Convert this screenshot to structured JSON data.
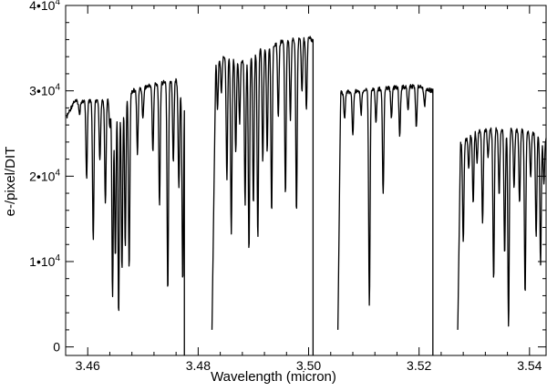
{
  "chart_data": {
    "type": "line",
    "title": "",
    "xlabel": "Wavelength (micron)",
    "ylabel": "e-/pixel/DIT",
    "xlim": [
      3.456,
      3.543
    ],
    "ylim": [
      -1000,
      40000
    ],
    "grid": false,
    "legend": "none",
    "x_ticks": [
      {
        "value": 3.46,
        "label": "3.46"
      },
      {
        "value": 3.48,
        "label": "3.48"
      },
      {
        "value": 3.5,
        "label": "3.50"
      },
      {
        "value": 3.52,
        "label": "3.52"
      },
      {
        "value": 3.54,
        "label": "3.54"
      }
    ],
    "y_ticks": [
      {
        "value": 0,
        "base": "0",
        "exp": ""
      },
      {
        "value": 10000,
        "base": "1•10",
        "exp": "4"
      },
      {
        "value": 20000,
        "base": "2•10",
        "exp": "4"
      },
      {
        "value": 30000,
        "base": "3•10",
        "exp": "4"
      },
      {
        "value": 40000,
        "base": "4•10",
        "exp": "4"
      }
    ],
    "line_color": "#000000",
    "segments": [
      {
        "x_start": 3.4562,
        "x_end": 3.4775,
        "continuum": [
          [
            3.4562,
            27200
          ],
          [
            3.4575,
            29000
          ],
          [
            3.463,
            29000
          ],
          [
            3.468,
            30200
          ],
          [
            3.472,
            31000
          ],
          [
            3.476,
            31500
          ],
          [
            3.4775,
            29000
          ]
        ],
        "lines": [
          [
            3.4585,
            27500
          ],
          [
            3.4598,
            20000
          ],
          [
            3.461,
            12500
          ],
          [
            3.4622,
            22000
          ],
          [
            3.4632,
            17000
          ],
          [
            3.464,
            26000
          ],
          [
            3.4645,
            6000
          ],
          [
            3.465,
            10500
          ],
          [
            3.4656,
            4000
          ],
          [
            3.4662,
            9000
          ],
          [
            3.4668,
            12000
          ],
          [
            3.4675,
            9500
          ],
          [
            3.469,
            23000
          ],
          [
            3.47,
            27000
          ],
          [
            3.4718,
            23000
          ],
          [
            3.473,
            17000
          ],
          [
            3.4745,
            6700
          ],
          [
            3.4755,
            22000
          ],
          [
            3.4765,
            19000
          ],
          [
            3.4772,
            8000
          ]
        ],
        "drop_to": -1000
      },
      {
        "x_start": 3.4825,
        "x_end": 3.5008,
        "continuum": [
          [
            3.4825,
            2000
          ],
          [
            3.4832,
            34000
          ],
          [
            3.485,
            34300
          ],
          [
            3.488,
            33800
          ],
          [
            3.491,
            35000
          ],
          [
            3.495,
            36000
          ],
          [
            3.5003,
            36500
          ],
          [
            3.5008,
            36000
          ]
        ],
        "lines": [
          [
            3.4835,
            28000
          ],
          [
            3.4842,
            30000
          ],
          [
            3.4852,
            20000
          ],
          [
            3.486,
            13500
          ],
          [
            3.4868,
            23000
          ],
          [
            3.4875,
            26500
          ],
          [
            3.4885,
            17000
          ],
          [
            3.4892,
            11500
          ],
          [
            3.49,
            17000
          ],
          [
            3.4908,
            13000
          ],
          [
            3.4917,
            22000
          ],
          [
            3.4925,
            23000
          ],
          [
            3.4933,
            16000
          ],
          [
            3.4945,
            27000
          ],
          [
            3.4958,
            18000
          ],
          [
            3.4967,
            27000
          ],
          [
            3.4978,
            16000
          ],
          [
            3.4988,
            30000
          ],
          [
            3.4996,
            28000
          ]
        ],
        "drop_to": -1000
      },
      {
        "x_start": 3.5053,
        "x_end": 3.5225,
        "continuum": [
          [
            3.5053,
            2000
          ],
          [
            3.5058,
            30000
          ],
          [
            3.51,
            30300
          ],
          [
            3.515,
            30600
          ],
          [
            3.52,
            30800
          ],
          [
            3.5225,
            30200
          ]
        ],
        "lines": [
          [
            3.5065,
            27000
          ],
          [
            3.508,
            25000
          ],
          [
            3.5095,
            27500
          ],
          [
            3.511,
            5000
          ],
          [
            3.5122,
            26500
          ],
          [
            3.5135,
            18000
          ],
          [
            3.515,
            27000
          ],
          [
            3.5165,
            25000
          ],
          [
            3.518,
            28000
          ],
          [
            3.5195,
            26000
          ],
          [
            3.521,
            28500
          ]
        ],
        "drop_to": -1000
      },
      {
        "x_start": 3.527,
        "x_end": 3.543,
        "continuum": [
          [
            3.527,
            2000
          ],
          [
            3.5275,
            24000
          ],
          [
            3.53,
            25500
          ],
          [
            3.535,
            25800
          ],
          [
            3.54,
            25500
          ],
          [
            3.543,
            24500
          ]
        ],
        "lines": [
          [
            3.528,
            12500
          ],
          [
            3.529,
            21000
          ],
          [
            3.5298,
            17000
          ],
          [
            3.5305,
            22000
          ],
          [
            3.5315,
            15000
          ],
          [
            3.5325,
            22500
          ],
          [
            3.5335,
            8000
          ],
          [
            3.5345,
            18000
          ],
          [
            3.5355,
            11000
          ],
          [
            3.5362,
            2500
          ],
          [
            3.5372,
            19000
          ],
          [
            3.5382,
            17000
          ],
          [
            3.5392,
            6500
          ],
          [
            3.5402,
            20000
          ],
          [
            3.5412,
            13000
          ],
          [
            3.542,
            10000
          ],
          [
            3.5426,
            19500
          ]
        ],
        "drop_to": null
      }
    ]
  }
}
